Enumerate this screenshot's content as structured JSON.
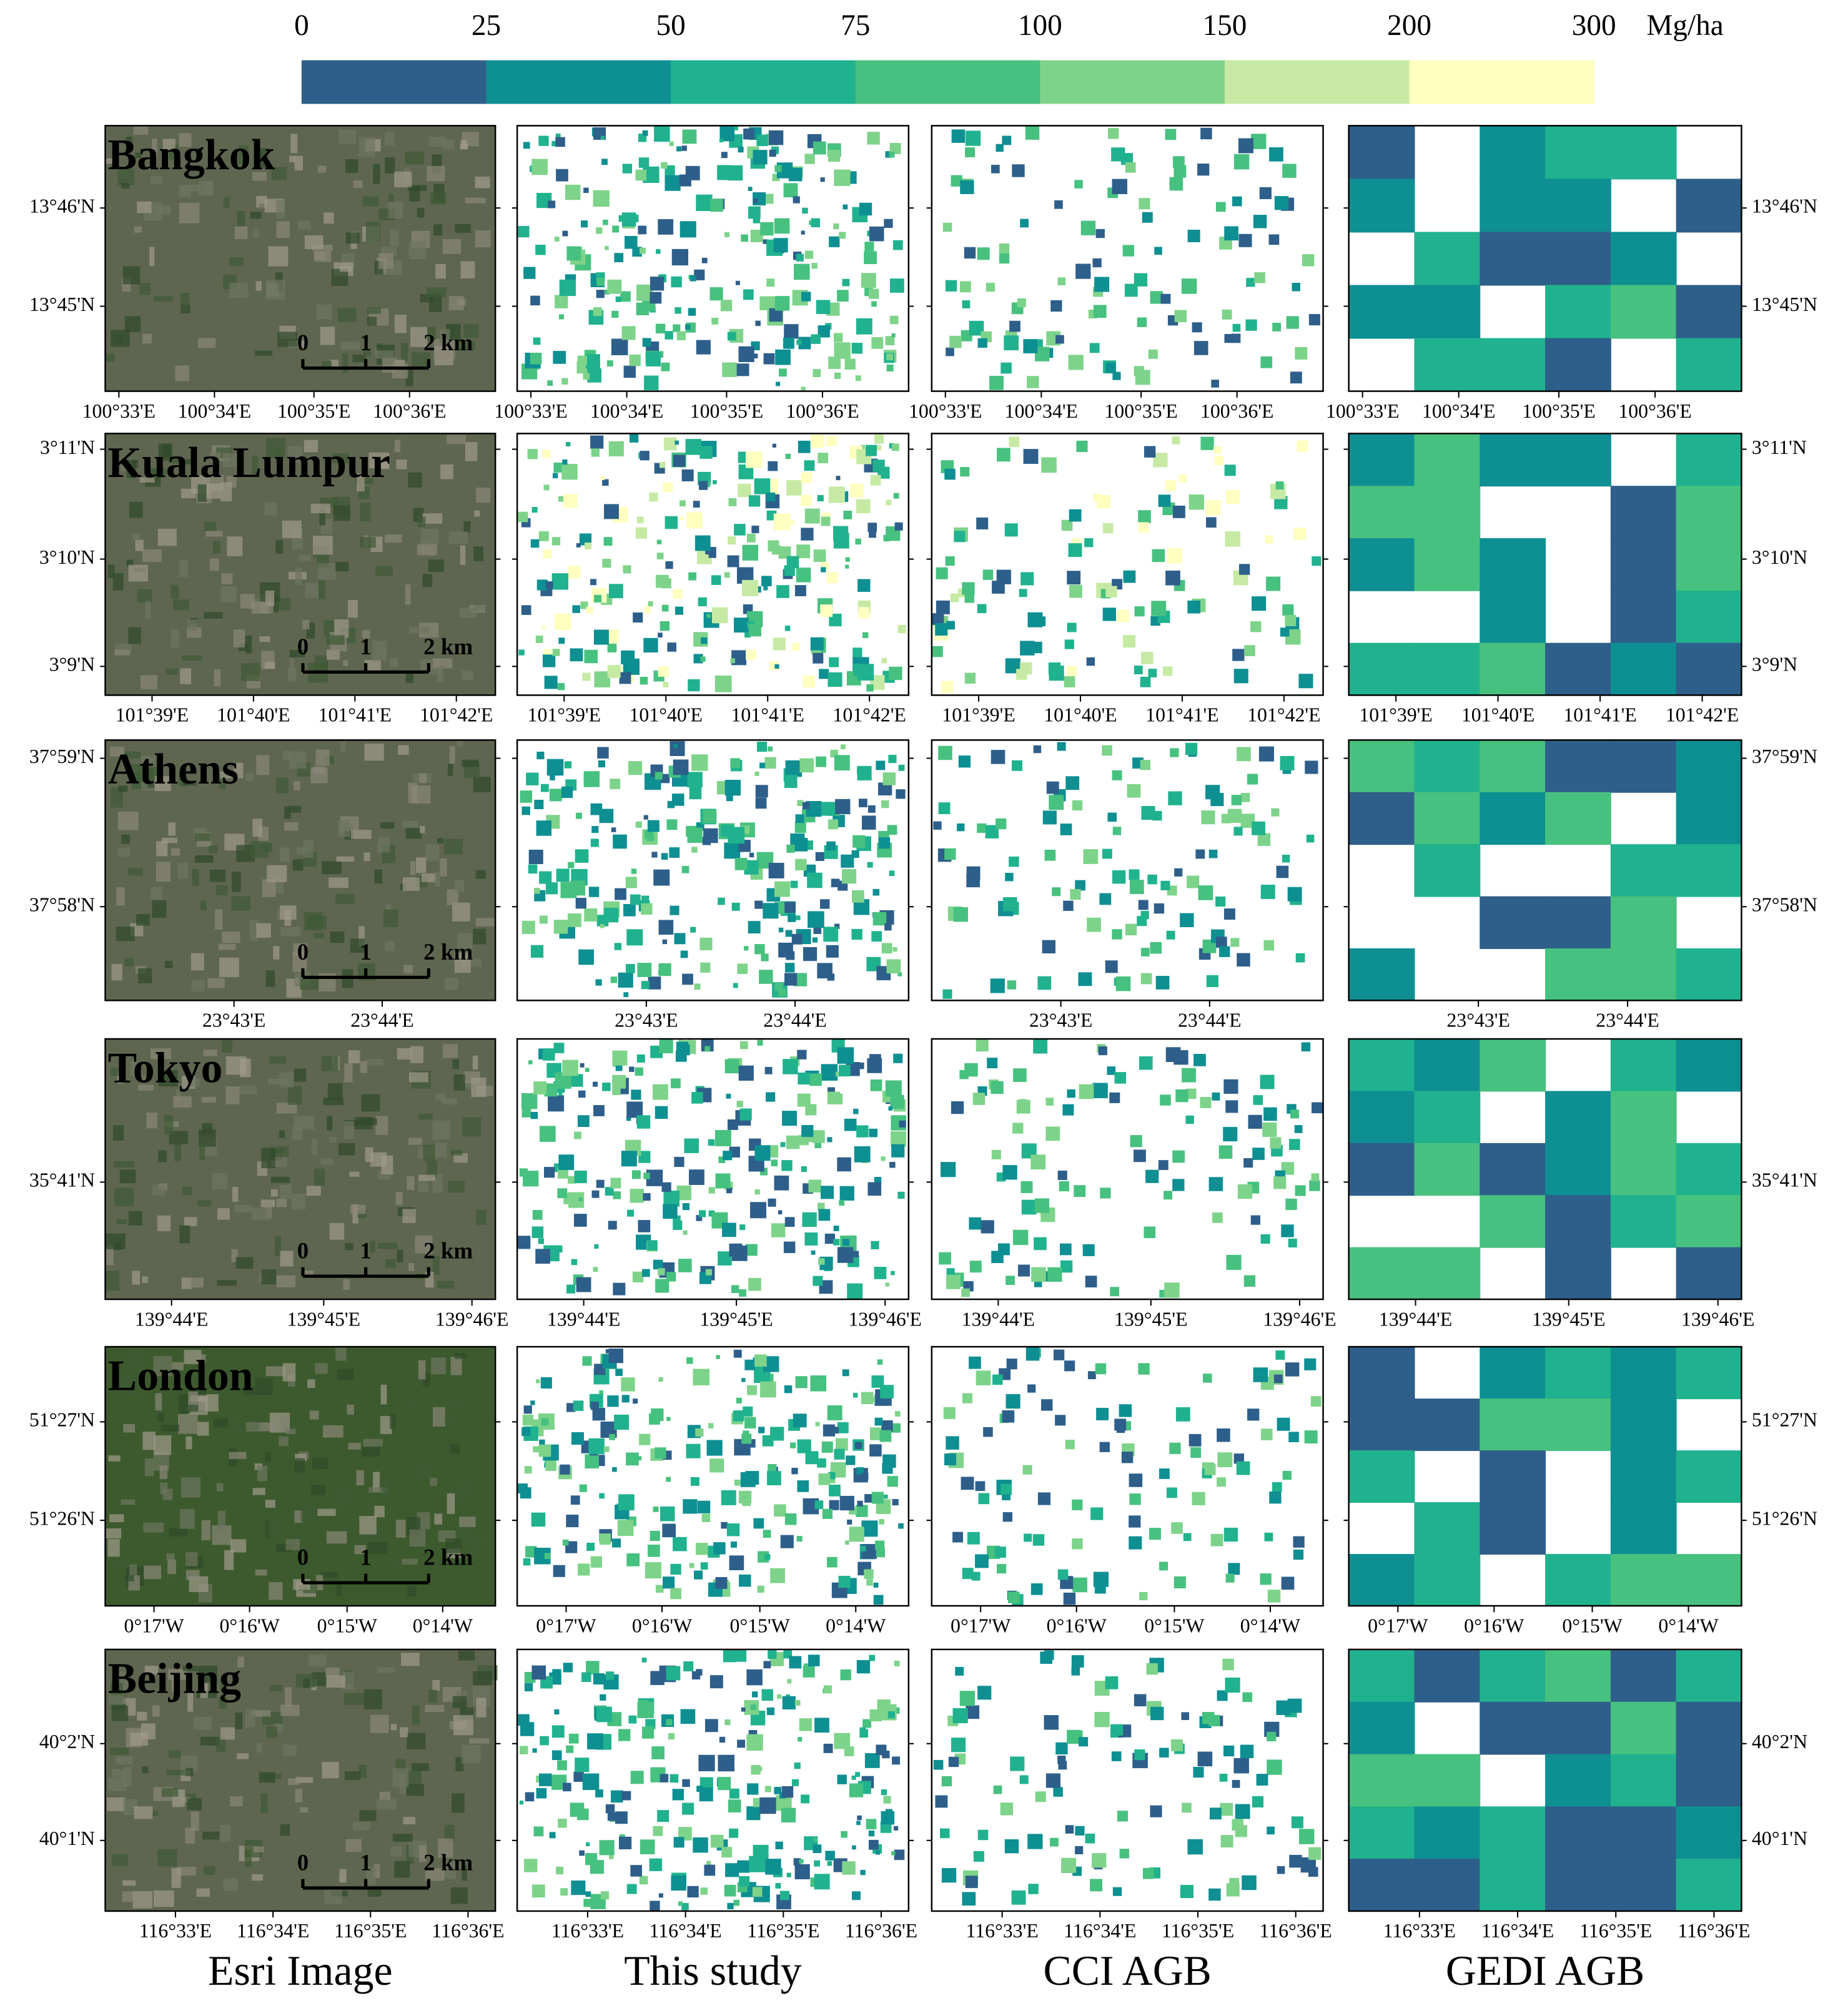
{
  "colorbar": {
    "ticks": [
      "0",
      "25",
      "50",
      "75",
      "100",
      "150",
      "200",
      "300"
    ],
    "unit": "Mg/ha",
    "colors": [
      "#2e5f8a",
      "#0e8f92",
      "#20b28e",
      "#47c17f",
      "#7ed38a",
      "#c6eaa4",
      "#ffffc0"
    ]
  },
  "scale_bar": [
    "0",
    "1",
    "2 km"
  ],
  "columns": [
    "Esri Image",
    "This study",
    "CCI AGB",
    "GEDI AGB"
  ],
  "rows": [
    {
      "city": "Bangkok",
      "lon_ticks": [
        "100°33'E",
        "100°34'E",
        "100°35'E",
        "100°36'E"
      ],
      "lat_ticks": [
        "13°46'N",
        "13°45'N"
      ]
    },
    {
      "city": "Kuala Lumpur",
      "lon_ticks": [
        "101°39'E",
        "101°40'E",
        "101°41'E",
        "101°42'E"
      ],
      "lat_ticks": [
        "3°11'N",
        "3°10'N",
        "3°9'N"
      ]
    },
    {
      "city": "Athens",
      "lon_ticks": [
        "23°43'E",
        "23°44'E"
      ],
      "lat_ticks": [
        "37°59'N",
        "37°58'N"
      ]
    },
    {
      "city": "Tokyo",
      "lon_ticks": [
        "139°44'E",
        "139°45'E",
        "139°46'E"
      ],
      "lat_ticks": [
        "35°41'N"
      ]
    },
    {
      "city": "London",
      "lon_ticks": [
        "0°17'W",
        "0°16'W",
        "0°15'W",
        "0°14'W"
      ],
      "lat_ticks": [
        "51°27'N",
        "51°26'N"
      ]
    },
    {
      "city": "Beijing",
      "lon_ticks": [
        "116°33'E",
        "116°34'E",
        "116°35'E",
        "116°36'E"
      ],
      "lat_ticks": [
        "40°2'N",
        "40°1'N"
      ]
    }
  ]
}
